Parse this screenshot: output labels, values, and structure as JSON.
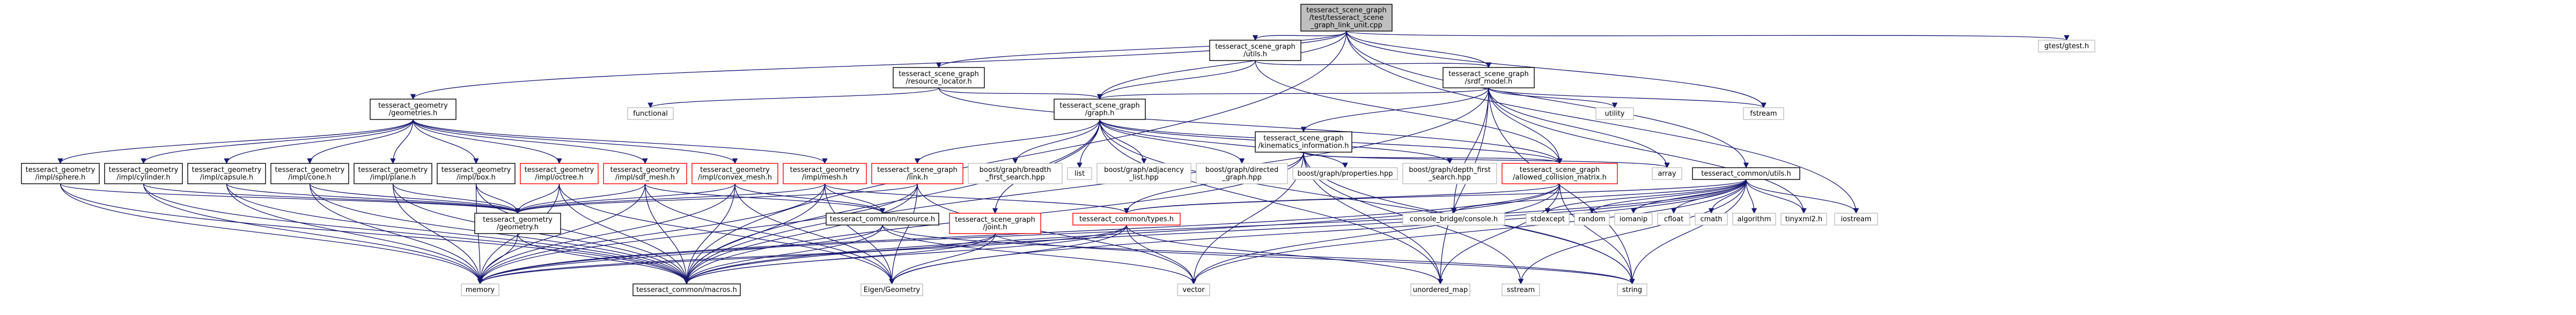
{
  "graph": {
    "colors": {
      "edge": "#191970",
      "root_fill": "#bfbfbf",
      "root_stroke": "#000000",
      "node_stroke": "#000000",
      "missing_stroke": "#bfbfbf",
      "red_stroke": "#ff0000",
      "node_fill": "#ffffff"
    },
    "nodes": [
      {
        "id": "root",
        "kind": "root",
        "lines": [
          "tesseract_scene_graph",
          "/test/tesseract_scene",
          "_graph_link_unit.cpp"
        ]
      },
      {
        "id": "utils_sg",
        "kind": "normal",
        "lines": [
          "tesseract_scene_graph",
          "/utils.h"
        ]
      },
      {
        "id": "gtest",
        "kind": "missing",
        "lines": [
          "gtest/gtest.h"
        ]
      },
      {
        "id": "resource_locator",
        "kind": "normal",
        "lines": [
          "tesseract_scene_graph",
          "/resource_locator.h"
        ]
      },
      {
        "id": "srdf_model",
        "kind": "normal",
        "lines": [
          "tesseract_scene_graph",
          "/srdf_model.h"
        ]
      },
      {
        "id": "geometries",
        "kind": "normal",
        "lines": [
          "tesseract_geometry",
          "/geometries.h"
        ]
      },
      {
        "id": "functional",
        "kind": "missing",
        "lines": [
          "functional"
        ]
      },
      {
        "id": "graph_h",
        "kind": "normal",
        "lines": [
          "tesseract_scene_graph",
          "/graph.h"
        ]
      },
      {
        "id": "utility",
        "kind": "missing",
        "lines": [
          "utility"
        ]
      },
      {
        "id": "fstream",
        "kind": "missing",
        "lines": [
          "fstream"
        ]
      },
      {
        "id": "kin_info",
        "kind": "normal",
        "lines": [
          "tesseract_scene_graph",
          "/kinematics_information.h"
        ]
      },
      {
        "id": "sphere",
        "kind": "normal",
        "lines": [
          "tesseract_geometry",
          "/impl/sphere.h"
        ]
      },
      {
        "id": "cylinder",
        "kind": "normal",
        "lines": [
          "tesseract_geometry",
          "/impl/cylinder.h"
        ]
      },
      {
        "id": "capsule",
        "kind": "normal",
        "lines": [
          "tesseract_geometry",
          "/impl/capsule.h"
        ]
      },
      {
        "id": "cone",
        "kind": "normal",
        "lines": [
          "tesseract_geometry",
          "/impl/cone.h"
        ]
      },
      {
        "id": "plane",
        "kind": "normal",
        "lines": [
          "tesseract_geometry",
          "/impl/plane.h"
        ]
      },
      {
        "id": "box",
        "kind": "normal",
        "lines": [
          "tesseract_geometry",
          "/impl/box.h"
        ]
      },
      {
        "id": "octree",
        "kind": "red",
        "lines": [
          "tesseract_geometry",
          "/impl/octree.h"
        ]
      },
      {
        "id": "sdf_mesh",
        "kind": "red",
        "lines": [
          "tesseract_geometry",
          "/impl/sdf_mesh.h"
        ]
      },
      {
        "id": "convex_mesh",
        "kind": "red",
        "lines": [
          "tesseract_geometry",
          "/impl/convex_mesh.h"
        ]
      },
      {
        "id": "mesh",
        "kind": "red",
        "lines": [
          "tesseract_geometry",
          "/impl/mesh.h"
        ]
      },
      {
        "id": "link_h",
        "kind": "red",
        "lines": [
          "tesseract_scene_graph",
          "/link.h"
        ]
      },
      {
        "id": "bfs",
        "kind": "missing",
        "lines": [
          "boost/graph/breadth",
          "_first_search.hpp"
        ]
      },
      {
        "id": "list",
        "kind": "missing",
        "lines": [
          "list"
        ]
      },
      {
        "id": "adjacency",
        "kind": "missing",
        "lines": [
          "boost/graph/adjacency",
          "_list.hpp"
        ]
      },
      {
        "id": "directed",
        "kind": "missing",
        "lines": [
          "boost/graph/directed",
          "_graph.hpp"
        ]
      },
      {
        "id": "properties",
        "kind": "missing",
        "lines": [
          "boost/graph/properties.hpp"
        ]
      },
      {
        "id": "dfs",
        "kind": "missing",
        "lines": [
          "boost/graph/depth_first",
          "_search.hpp"
        ]
      },
      {
        "id": "acm",
        "kind": "red",
        "lines": [
          "tesseract_scene_graph",
          "/allowed_collision_matrix.h"
        ]
      },
      {
        "id": "array",
        "kind": "missing",
        "lines": [
          "array"
        ]
      },
      {
        "id": "common_utils",
        "kind": "normal",
        "lines": [
          "tesseract_common/utils.h"
        ]
      },
      {
        "id": "geometry_h",
        "kind": "normal",
        "lines": [
          "tesseract_geometry",
          "/geometry.h"
        ]
      },
      {
        "id": "resource_h",
        "kind": "normal",
        "lines": [
          "tesseract_common/resource.h"
        ]
      },
      {
        "id": "joint_h",
        "kind": "red",
        "lines": [
          "tesseract_scene_graph",
          "/joint.h"
        ]
      },
      {
        "id": "types_h",
        "kind": "red",
        "lines": [
          "tesseract_common/types.h"
        ]
      },
      {
        "id": "console",
        "kind": "missing",
        "lines": [
          "console_bridge/console.h"
        ]
      },
      {
        "id": "stdexcept",
        "kind": "missing",
        "lines": [
          "stdexcept"
        ]
      },
      {
        "id": "random",
        "kind": "missing",
        "lines": [
          "random"
        ]
      },
      {
        "id": "iomanip",
        "kind": "missing",
        "lines": [
          "iomanip"
        ]
      },
      {
        "id": "cfloat",
        "kind": "missing",
        "lines": [
          "cfloat"
        ]
      },
      {
        "id": "cmath",
        "kind": "missing",
        "lines": [
          "cmath"
        ]
      },
      {
        "id": "algorithm",
        "kind": "missing",
        "lines": [
          "algorithm"
        ]
      },
      {
        "id": "tinyxml2",
        "kind": "missing",
        "lines": [
          "tinyxml2.h"
        ]
      },
      {
        "id": "iostream",
        "kind": "missing",
        "lines": [
          "iostream"
        ]
      },
      {
        "id": "memory",
        "kind": "missing",
        "lines": [
          "memory"
        ]
      },
      {
        "id": "macros",
        "kind": "normal",
        "lines": [
          "tesseract_common/macros.h"
        ]
      },
      {
        "id": "eigen",
        "kind": "missing",
        "lines": [
          "Eigen/Geometry"
        ]
      },
      {
        "id": "vector",
        "kind": "missing",
        "lines": [
          "vector"
        ]
      },
      {
        "id": "unordered_map",
        "kind": "missing",
        "lines": [
          "unordered_map"
        ]
      },
      {
        "id": "sstream",
        "kind": "missing",
        "lines": [
          "sstream"
        ]
      },
      {
        "id": "string",
        "kind": "missing",
        "lines": [
          "string"
        ]
      }
    ],
    "edges": [
      [
        "root",
        "utils_sg"
      ],
      [
        "root",
        "gtest"
      ],
      [
        "root",
        "resource_locator"
      ],
      [
        "root",
        "srdf_model"
      ],
      [
        "root",
        "geometries"
      ],
      [
        "root",
        "graph_h"
      ],
      [
        "root",
        "fstream"
      ],
      [
        "root",
        "common_utils"
      ],
      [
        "root",
        "iostream"
      ],
      [
        "root",
        "macros"
      ],
      [
        "utils_sg",
        "graph_h"
      ],
      [
        "utils_sg",
        "acm"
      ],
      [
        "utils_sg",
        "srdf_model"
      ],
      [
        "resource_locator",
        "functional"
      ],
      [
        "resource_locator",
        "graph_h"
      ],
      [
        "resource_locator",
        "acm"
      ],
      [
        "srdf_model",
        "graph_h"
      ],
      [
        "srdf_model",
        "kin_info"
      ],
      [
        "srdf_model",
        "acm"
      ],
      [
        "srdf_model",
        "utility"
      ],
      [
        "srdf_model",
        "fstream"
      ],
      [
        "srdf_model",
        "array"
      ],
      [
        "srdf_model",
        "tinyxml2"
      ],
      [
        "srdf_model",
        "macros"
      ],
      [
        "srdf_model",
        "console"
      ],
      [
        "srdf_model",
        "string"
      ],
      [
        "srdf_model",
        "unordered_map"
      ],
      [
        "geometries",
        "sphere"
      ],
      [
        "geometries",
        "cylinder"
      ],
      [
        "geometries",
        "capsule"
      ],
      [
        "geometries",
        "cone"
      ],
      [
        "geometries",
        "plane"
      ],
      [
        "geometries",
        "box"
      ],
      [
        "geometries",
        "octree"
      ],
      [
        "geometries",
        "sdf_mesh"
      ],
      [
        "geometries",
        "convex_mesh"
      ],
      [
        "geometries",
        "mesh"
      ],
      [
        "sphere",
        "geometry_h"
      ],
      [
        "sphere",
        "memory"
      ],
      [
        "sphere",
        "macros"
      ],
      [
        "cylinder",
        "geometry_h"
      ],
      [
        "cylinder",
        "memory"
      ],
      [
        "cylinder",
        "macros"
      ],
      [
        "capsule",
        "geometry_h"
      ],
      [
        "capsule",
        "memory"
      ],
      [
        "capsule",
        "macros"
      ],
      [
        "cone",
        "geometry_h"
      ],
      [
        "cone",
        "memory"
      ],
      [
        "cone",
        "macros"
      ],
      [
        "plane",
        "geometry_h"
      ],
      [
        "plane",
        "memory"
      ],
      [
        "plane",
        "macros"
      ],
      [
        "box",
        "geometry_h"
      ],
      [
        "box",
        "memory"
      ],
      [
        "box",
        "macros"
      ],
      [
        "octree",
        "geometry_h"
      ],
      [
        "octree",
        "memory"
      ],
      [
        "octree",
        "macros"
      ],
      [
        "octree",
        "eigen"
      ],
      [
        "sdf_mesh",
        "geometry_h"
      ],
      [
        "sdf_mesh",
        "memory"
      ],
      [
        "sdf_mesh",
        "macros"
      ],
      [
        "sdf_mesh",
        "eigen"
      ],
      [
        "sdf_mesh",
        "resource_h"
      ],
      [
        "convex_mesh",
        "geometry_h"
      ],
      [
        "convex_mesh",
        "memory"
      ],
      [
        "convex_mesh",
        "macros"
      ],
      [
        "convex_mesh",
        "eigen"
      ],
      [
        "convex_mesh",
        "resource_h"
      ],
      [
        "mesh",
        "geometry_h"
      ],
      [
        "mesh",
        "memory"
      ],
      [
        "mesh",
        "macros"
      ],
      [
        "mesh",
        "eigen"
      ],
      [
        "mesh",
        "resource_h"
      ],
      [
        "mesh",
        "types_h"
      ],
      [
        "graph_h",
        "link_h"
      ],
      [
        "graph_h",
        "bfs"
      ],
      [
        "graph_h",
        "list"
      ],
      [
        "graph_h",
        "adjacency"
      ],
      [
        "graph_h",
        "directed"
      ],
      [
        "graph_h",
        "properties"
      ],
      [
        "graph_h",
        "dfs"
      ],
      [
        "graph_h",
        "acm"
      ],
      [
        "graph_h",
        "joint_h"
      ],
      [
        "graph_h",
        "macros"
      ],
      [
        "graph_h",
        "string"
      ],
      [
        "graph_h",
        "unordered_map"
      ],
      [
        "link_h",
        "geometry_h"
      ],
      [
        "link_h",
        "memory"
      ],
      [
        "link_h",
        "eigen"
      ],
      [
        "link_h",
        "macros"
      ],
      [
        "link_h",
        "vector"
      ],
      [
        "kin_info",
        "acm"
      ],
      [
        "kin_info",
        "array"
      ],
      [
        "kin_info",
        "types_h"
      ],
      [
        "kin_info",
        "vector"
      ],
      [
        "kin_info",
        "string"
      ],
      [
        "kin_info",
        "unordered_map"
      ],
      [
        "kin_info",
        "macros"
      ],
      [
        "kin_info",
        "sstream"
      ],
      [
        "acm",
        "types_h"
      ],
      [
        "acm",
        "macros"
      ],
      [
        "acm",
        "memory"
      ],
      [
        "acm",
        "unordered_map"
      ],
      [
        "acm",
        "vector"
      ],
      [
        "acm",
        "string"
      ],
      [
        "common_utils",
        "console"
      ],
      [
        "common_utils",
        "stdexcept"
      ],
      [
        "common_utils",
        "random"
      ],
      [
        "common_utils",
        "iomanip"
      ],
      [
        "common_utils",
        "cfloat"
      ],
      [
        "common_utils",
        "cmath"
      ],
      [
        "common_utils",
        "algorithm"
      ],
      [
        "common_utils",
        "tinyxml2"
      ],
      [
        "common_utils",
        "iostream"
      ],
      [
        "common_utils",
        "types_h"
      ],
      [
        "common_utils",
        "macros"
      ],
      [
        "common_utils",
        "eigen"
      ],
      [
        "common_utils",
        "vector"
      ],
      [
        "common_utils",
        "string"
      ],
      [
        "common_utils",
        "sstream"
      ],
      [
        "common_utils",
        "memory"
      ],
      [
        "geometry_h",
        "memory"
      ],
      [
        "geometry_h",
        "macros"
      ],
      [
        "resource_h",
        "macros"
      ],
      [
        "resource_h",
        "memory"
      ],
      [
        "resource_h",
        "vector"
      ],
      [
        "resource_h",
        "string"
      ],
      [
        "joint_h",
        "macros"
      ],
      [
        "joint_h",
        "memory"
      ],
      [
        "joint_h",
        "eigen"
      ],
      [
        "joint_h",
        "string"
      ],
      [
        "types_h",
        "macros"
      ],
      [
        "types_h",
        "eigen"
      ],
      [
        "types_h",
        "vector"
      ],
      [
        "types_h",
        "unordered_map"
      ],
      [
        "types_h",
        "memory"
      ]
    ]
  }
}
